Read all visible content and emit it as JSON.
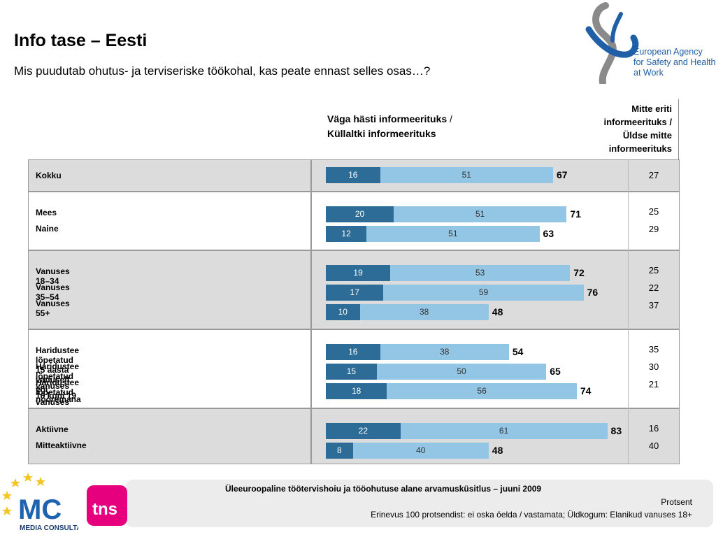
{
  "header": {
    "title": "Info tase – Eesti",
    "subtitle": "Mis puudutab ohutus- ja terviseriske töökohal, kas peate ennast selles osas…?"
  },
  "logo_top": {
    "lines": [
      "European Agency",
      "for Safety and Health",
      "at Work"
    ],
    "color": "#1f5fa8"
  },
  "columns": {
    "positive_line1": "Väga hästi informeerituks",
    "positive_slash": " /",
    "positive_line2": "Küllaltki informeerituks",
    "negative_lines": [
      "Mitte eriti",
      "informeerituks /",
      "Üldse mitte",
      "informeerituks"
    ]
  },
  "chart_data": {
    "type": "bar",
    "stacked": true,
    "orientation": "horizontal",
    "colors": {
      "very": "#2d6c96",
      "fairly": "#93c6e4"
    },
    "groups": [
      {
        "rows": [
          {
            "label": "Kokku",
            "very": 16,
            "fairly": 51,
            "total": 67,
            "negative": 27
          }
        ]
      },
      {
        "rows": [
          {
            "label": "Mees",
            "very": 20,
            "fairly": 51,
            "total": 71,
            "negative": 25
          },
          {
            "label": "Naine",
            "very": 12,
            "fairly": 51,
            "total": 63,
            "negative": 29
          }
        ]
      },
      {
        "rows": [
          {
            "label": "Vanuses 18–34",
            "very": 19,
            "fairly": 53,
            "total": 72,
            "negative": 25
          },
          {
            "label": "Vanuses 35–54",
            "very": 17,
            "fairly": 59,
            "total": 76,
            "negative": 22
          },
          {
            "label": "Vanuses 55+",
            "very": 10,
            "fairly": 38,
            "total": 48,
            "negative": 37
          }
        ]
      },
      {
        "rows": [
          {
            "label": "Haridustee lõpetatud 15 aasta vanuselt või nooremana",
            "very": 16,
            "fairly": 38,
            "total": 54,
            "negative": 35
          },
          {
            "label": "Haridustee lõpetatud vanuses 16 kuni 19",
            "very": 15,
            "fairly": 50,
            "total": 65,
            "negative": 30
          },
          {
            "label": "Haridustee lõpetatud vanuses 20 või üle selle",
            "very": 18,
            "fairly": 56,
            "total": 74,
            "negative": 21
          }
        ]
      },
      {
        "rows": [
          {
            "label": "Aktiivne",
            "very": 22,
            "fairly": 61,
            "total": 83,
            "negative": 16
          },
          {
            "label": "Mitteaktiivne",
            "very": 8,
            "fairly": 40,
            "total": 48,
            "negative": 40
          }
        ]
      }
    ]
  },
  "footer": {
    "title": "Üleeuroopaline töötervishoiu ja tööohutuse alane arvamusküsitlus – juuni 2009",
    "unit": "Protsent",
    "note": "Erinevus 100 protsendist: ei oska öelda / vastamata; Üldkogum: Elanikud vanuses 18+",
    "mc_logo_text": [
      "MC",
      "MEDIA CONSULTA"
    ],
    "tns_logo_text": "tns"
  }
}
